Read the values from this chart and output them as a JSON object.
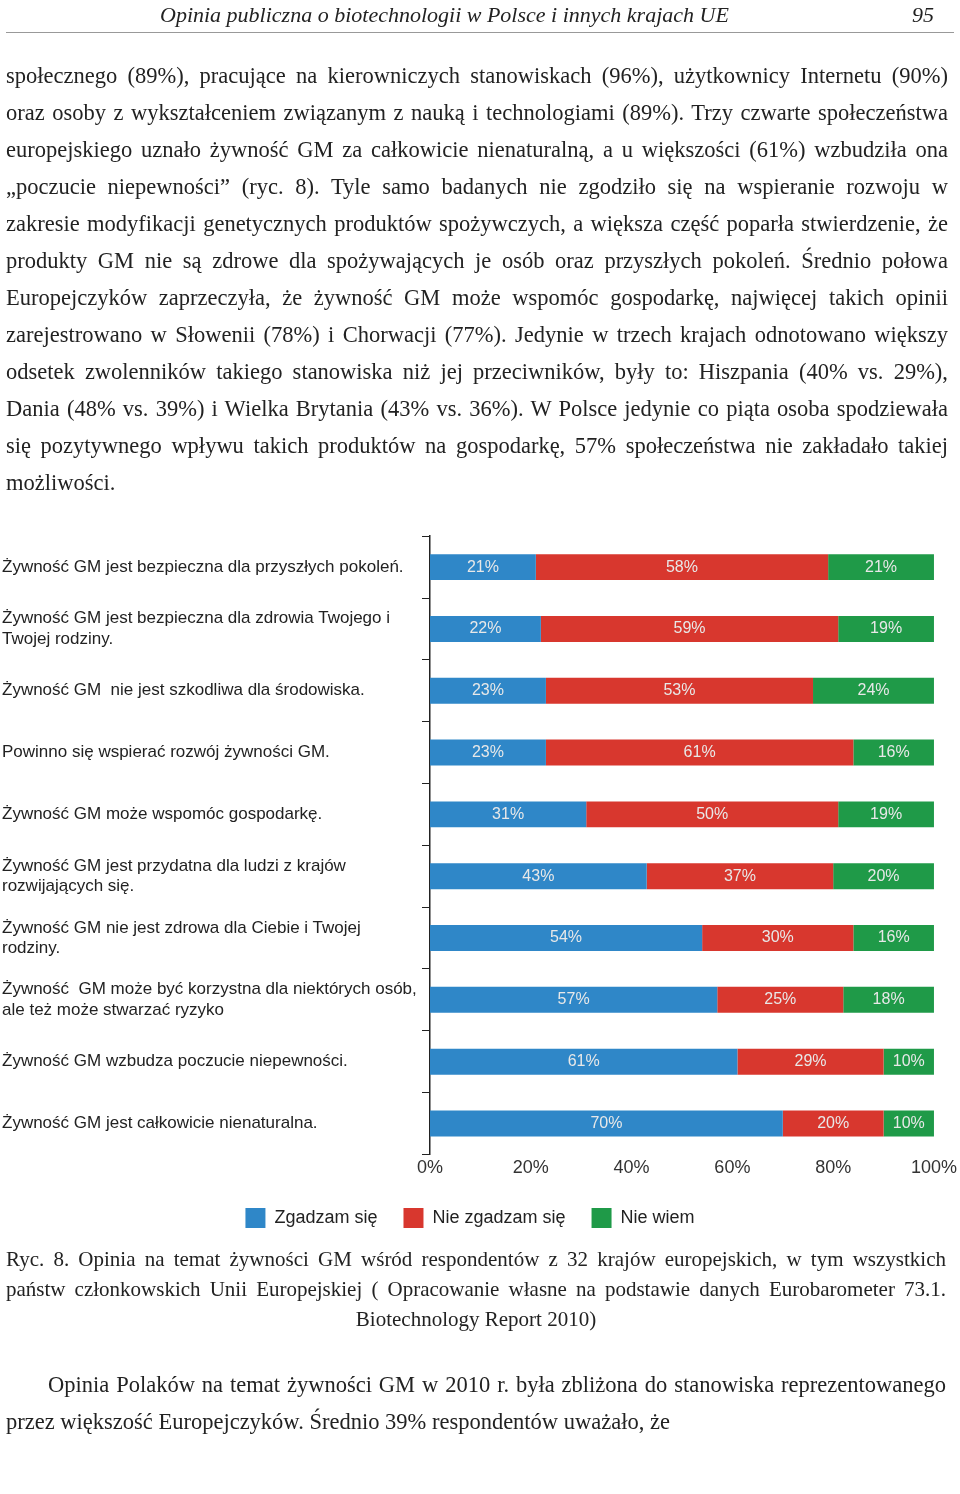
{
  "chart_data": {
    "type": "bar",
    "orientation": "horizontal",
    "stacked": true,
    "categories": [
      "Żywność GM jest bezpieczna dla przyszłych pokoleń.",
      "Żywność GM jest bezpieczna dla zdrowia Twojego i Twojej rodziny.",
      "Żywność GM  nie jest szkodliwa dla środowiska.",
      "Powinno się wspierać rozwój żywności GM.",
      "Żywność GM może wspomóc gospodarkę.",
      "Żywność GM jest przydatna dla ludzi z krajów rozwijających się.",
      "Żywność GM nie jest zdrowa dla Ciebie i Twojej rodziny.",
      "Żywność  GM może być korzystna dla niektórych osób, ale też może stwarzać ryzyko",
      "Żywność GM wzbudza poczucie niepewności.",
      "Żywność GM jest całkowicie nienaturalna."
    ],
    "series": [
      {
        "name": "Zgadzam się",
        "color": "#2f87c8",
        "values": [
          21,
          22,
          23,
          23,
          31,
          43,
          54,
          57,
          61,
          70
        ],
        "value_labels": [
          "21%",
          "22%",
          "23%",
          "23%",
          "31%",
          "43%",
          "54%",
          "57%",
          "61%",
          "70%"
        ]
      },
      {
        "name": "Nie zgadzam się",
        "color": "#d8372e",
        "values": [
          58,
          59,
          53,
          61,
          50,
          37,
          30,
          25,
          29,
          20
        ],
        "value_labels": [
          "58%",
          "59%",
          "53%",
          "61%",
          "50%",
          "37%",
          "30%",
          "25%",
          "29%",
          "20%"
        ]
      },
      {
        "name": "Nie wiem",
        "color": "#1f9a48",
        "values": [
          21,
          19,
          24,
          16,
          19,
          20,
          16,
          18,
          10,
          10
        ],
        "value_labels": [
          "21%",
          "19%",
          "24%",
          "16%",
          "19%",
          "20%",
          "16%",
          "18%",
          "10%",
          "10%"
        ]
      }
    ],
    "xlim": [
      0,
      100
    ],
    "xticks": [
      {
        "value": 0,
        "label": "0%"
      },
      {
        "value": 20,
        "label": "20%"
      },
      {
        "value": 40,
        "label": "40%"
      },
      {
        "value": 60,
        "label": "60%"
      },
      {
        "value": 80,
        "label": "80%"
      },
      {
        "value": 100,
        "label": "100%"
      }
    ],
    "grid": false,
    "legend": "bottom",
    "annotations": [
      "Opinia publiczna o biotechnologii w Polsce i innych krajach UE",
      "95",
      "społecznego (89%), pracujące na kierowniczych stanowiskach (96%), użytkownicy Internetu (90%) oraz osoby z wykształceniem związanym z nauką i technologiami (89%). Trzy czwarte społeczeństwa europejskiego uznało żywność GM za całkowicie nienaturalną, a u większości (61%) wzbudziła ona „poczucie niepewności” (ryc. 8). Tyle samo badanych nie zgodziło się na wspieranie rozwoju w zakresie modyfikacji genetycznych produktów spożywczych, a większa część poparła stwierdzenie, że produkty GM nie są zdrowe dla spożywających je osób oraz przyszłych pokoleń. Średnio połowa Europejczyków zaprzeczyła, że żywność GM może wspomóc gospodarkę, najwięcej takich opinii zarejestrowano w Słowenii (78%) i Chorwacji (77%). Jedynie w trzech krajach odnotowano większy odsetek zwolenników takiego stanowiska niż jej przeciwników, były to: Hiszpania (40% vs. 29%), Dania (48% vs. 39%) i Wielka Brytania (43% vs. 36%). W Polsce jedynie co piąta osoba spodziewała się pozytywnego wpływu takich produktów na gospodarkę, 57% społeczeństwa nie zakładało takiej możliwości.",
      "Ryc. 8. Opinia na temat żywności GM wśród respondentów z 32 krajów europejskich, w tym wszystkich państw członkowskich Unii Europejskiej ( Opracowanie własne na podstawie danych Eurobarometer 73.1. Biotechnology Report 2010)",
      "Opinia Polaków na temat żywności GM w 2010 r. była zbliżona do stanowiska reprezentowanego przez większość Europejczyków. Średnio 39% respondentów uważało, że"
    ]
  }
}
